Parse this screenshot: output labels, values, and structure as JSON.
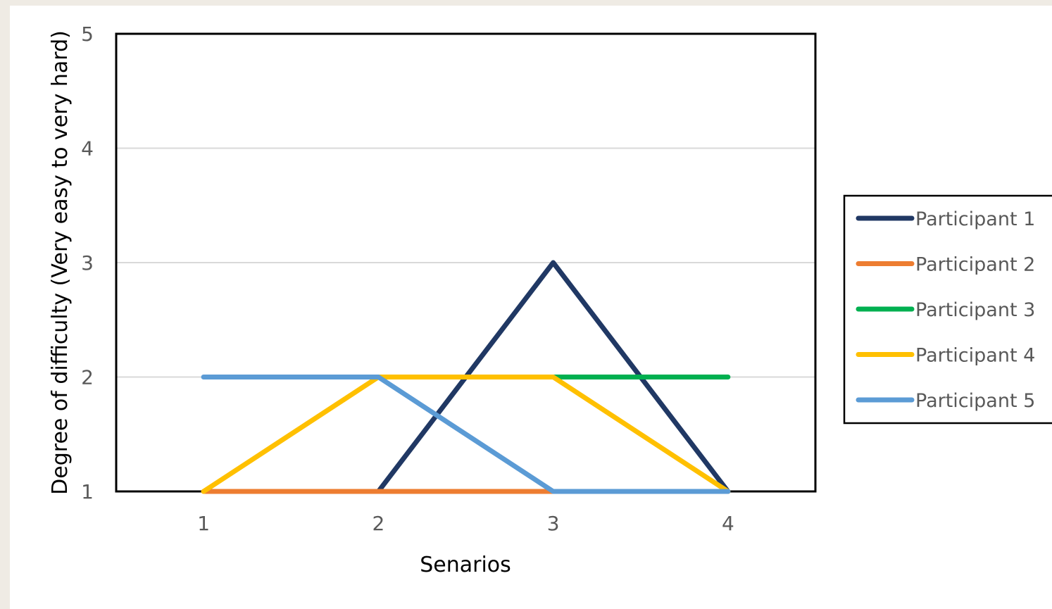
{
  "chart_data": {
    "type": "line",
    "title": "",
    "xlabel": "Senarios",
    "ylabel": "Degree of difficulty (Very easy to very hard)",
    "categories": [
      "1",
      "2",
      "3",
      "4"
    ],
    "ylim": [
      1,
      5
    ],
    "yticks": [
      "1",
      "2",
      "3",
      "4",
      "5"
    ],
    "grid": true,
    "legend_position": "right",
    "series": [
      {
        "name": "Participant 1",
        "color": "#203864",
        "values": [
          null,
          1,
          3,
          1
        ]
      },
      {
        "name": "Participant 2",
        "color": "#ed7d31",
        "values": [
          1,
          1,
          1,
          1
        ]
      },
      {
        "name": "Participant 3",
        "color": "#00b050",
        "values": [
          null,
          null,
          2,
          2
        ]
      },
      {
        "name": "Participant 4",
        "color": "#ffc000",
        "values": [
          1,
          2,
          2,
          1
        ]
      },
      {
        "name": "Participant 5",
        "color": "#5b9bd5",
        "values": [
          2,
          2,
          1,
          1
        ]
      }
    ]
  }
}
